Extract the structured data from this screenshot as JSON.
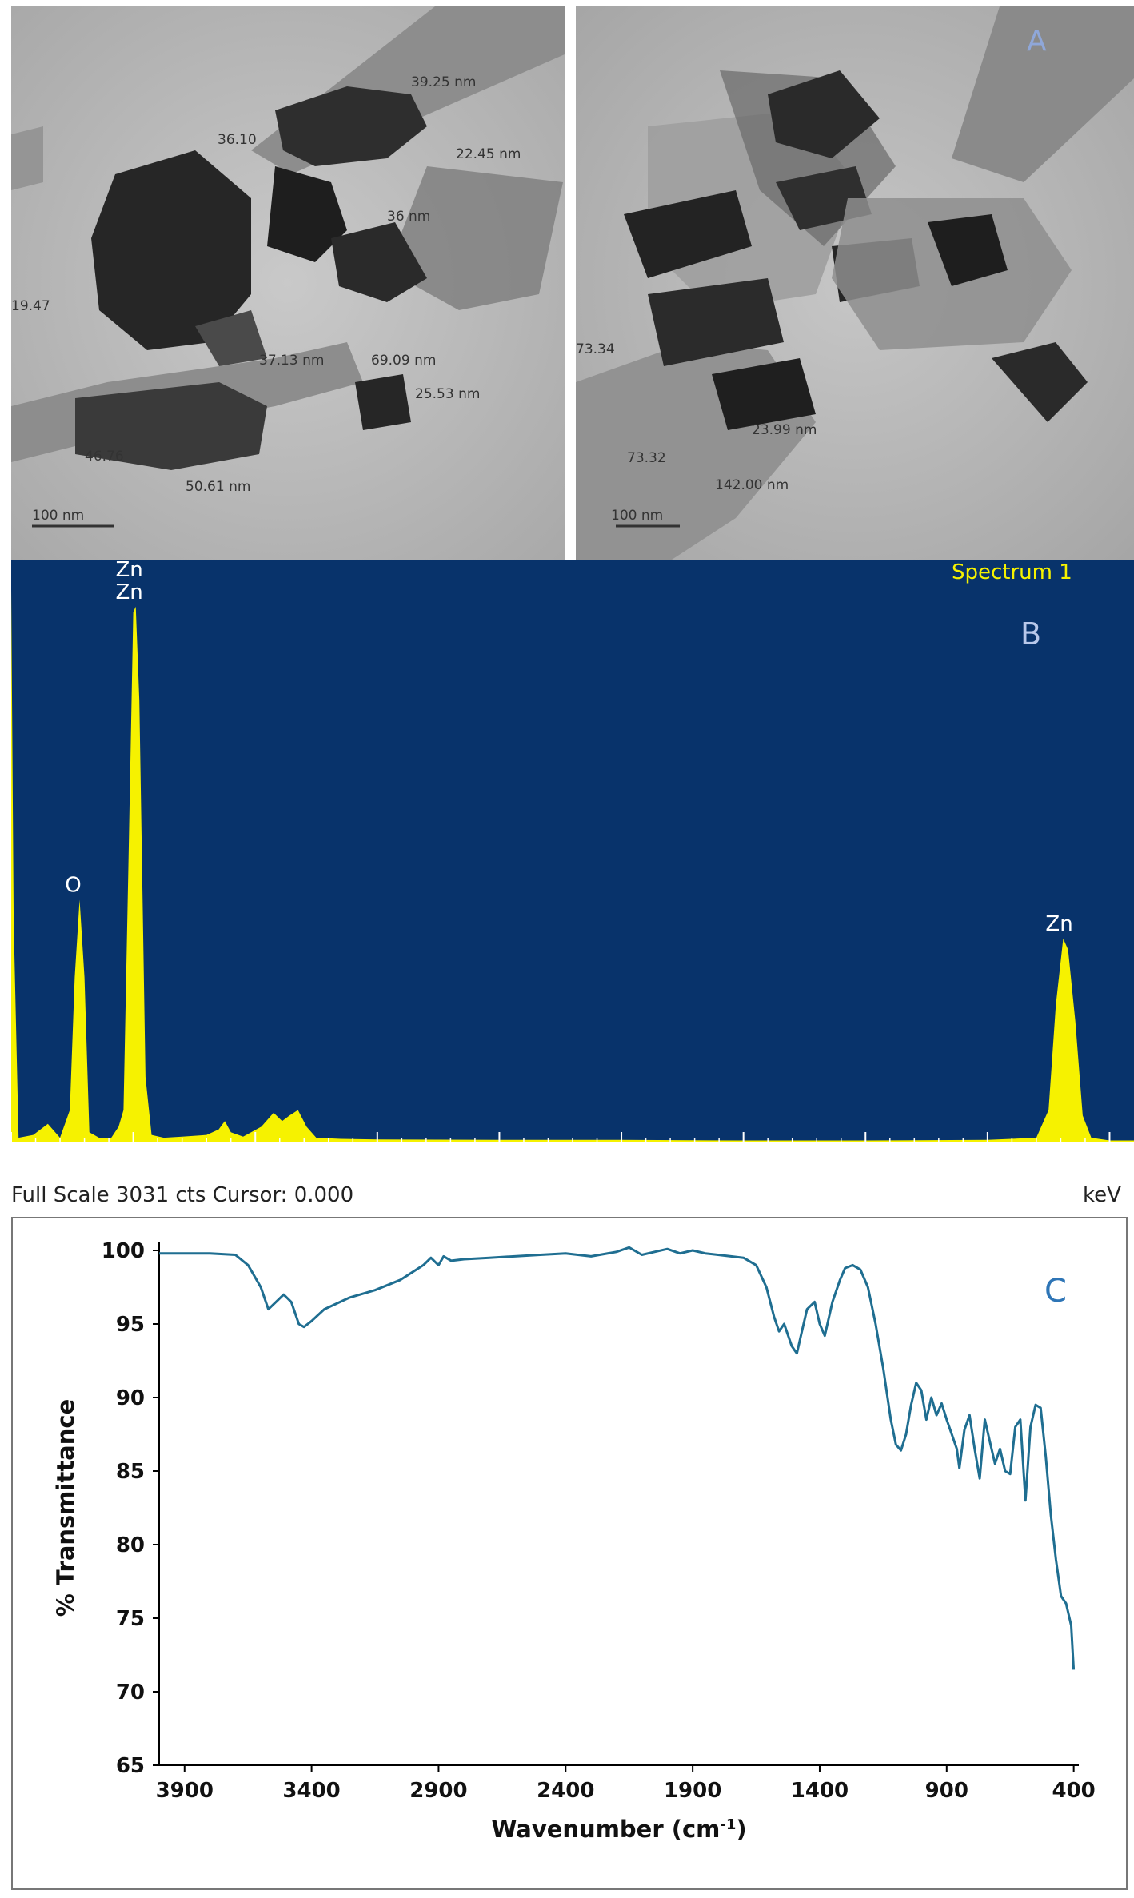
{
  "panel_a": {
    "label": "A",
    "left_image": {
      "scale_bar": "100 nm",
      "measurements": [
        "39.25 nm",
        "36.10",
        "22.45 nm",
        "36 nm",
        "19.47",
        "37.13 nm",
        "69.09 nm",
        "25.53 nm",
        "46.76",
        "50.61 nm"
      ]
    },
    "right_image": {
      "scale_bar": "100 nm",
      "measurements": [
        "73.34",
        "23.99 nm",
        "73.32",
        "142.00 nm"
      ]
    },
    "colors": {
      "background": "#b9b9b9",
      "fiber": "#8c8c8c",
      "particle": "#2a2a2a"
    }
  },
  "chart_data": [
    {
      "type": "line",
      "panel_label": "B",
      "spectrum_label": "Spectrum 1",
      "footer_left": "Full Scale 3031 cts Cursor: 0.000",
      "xlabel": "keV",
      "xlim": [
        0,
        9.2
      ],
      "x_ticks": [
        "0",
        "1",
        "2",
        "3",
        "4",
        "5",
        "6",
        "7",
        "8",
        "9"
      ],
      "peaks": [
        {
          "label": "O",
          "x": 0.56,
          "height_fraction": 0.44
        },
        {
          "label": "Zn",
          "x": 1.02,
          "height_fraction": 0.97
        },
        {
          "label": "Zn",
          "x": 1.02,
          "height_fraction": 0.97
        },
        {
          "label": "Zn",
          "x": 8.64,
          "height_fraction": 0.37
        }
      ],
      "series": [
        {
          "x": [
            0.0,
            0.02,
            0.06,
            0.18,
            0.3,
            0.4,
            0.48,
            0.52,
            0.56,
            0.6,
            0.64,
            0.72,
            0.82,
            0.88,
            0.92,
            0.96,
            1.0,
            1.02,
            1.05,
            1.1,
            1.15,
            1.25,
            1.4,
            1.6,
            1.7,
            1.75,
            1.8,
            1.9,
            2.05,
            2.15,
            2.22,
            2.28,
            2.35,
            2.42,
            2.5,
            2.7,
            3.0,
            4.0,
            5.0,
            6.0,
            7.0,
            8.0,
            8.4,
            8.5,
            8.56,
            8.62,
            8.66,
            8.72,
            8.78,
            8.85,
            9.0,
            9.2
          ],
          "y": [
            1.0,
            0.4,
            0.01,
            0.015,
            0.035,
            0.01,
            0.06,
            0.3,
            0.44,
            0.3,
            0.02,
            0.01,
            0.01,
            0.03,
            0.06,
            0.5,
            0.96,
            0.97,
            0.8,
            0.12,
            0.015,
            0.01,
            0.012,
            0.015,
            0.025,
            0.04,
            0.02,
            0.012,
            0.03,
            0.055,
            0.04,
            0.05,
            0.06,
            0.03,
            0.01,
            0.008,
            0.007,
            0.006,
            0.006,
            0.005,
            0.005,
            0.006,
            0.01,
            0.06,
            0.25,
            0.37,
            0.35,
            0.22,
            0.05,
            0.01,
            0.005,
            0.005
          ]
        }
      ],
      "colors": {
        "background": "#08336b",
        "spectrum": "#f6f200",
        "label": "#ffffff"
      }
    },
    {
      "type": "line",
      "panel_label": "C",
      "xlabel_main": "Wavenumber (cm",
      "xlabel_sup": "-1",
      "xlabel_end": ")",
      "ylabel": "% Transmittance",
      "xlim": [
        4000,
        380
      ],
      "ylim": [
        65,
        100
      ],
      "x_ticks": [
        3900,
        3400,
        2900,
        2400,
        1900,
        1400,
        900,
        400
      ],
      "y_ticks": [
        100,
        95,
        90,
        85,
        80,
        75,
        70,
        65
      ],
      "series": [
        {
          "x": [
            4000,
            3800,
            3700,
            3650,
            3600,
            3570,
            3540,
            3510,
            3480,
            3450,
            3430,
            3400,
            3350,
            3250,
            3150,
            3050,
            2960,
            2930,
            2900,
            2880,
            2850,
            2800,
            2700,
            2500,
            2400,
            2300,
            2200,
            2150,
            2100,
            2050,
            2000,
            1950,
            1900,
            1850,
            1800,
            1700,
            1650,
            1610,
            1580,
            1560,
            1540,
            1510,
            1490,
            1470,
            1450,
            1420,
            1400,
            1380,
            1350,
            1320,
            1300,
            1270,
            1240,
            1210,
            1180,
            1150,
            1120,
            1100,
            1080,
            1060,
            1040,
            1020,
            1000,
            980,
            960,
            940,
            920,
            900,
            880,
            860,
            850,
            830,
            810,
            790,
            770,
            750,
            730,
            710,
            690,
            670,
            650,
            630,
            610,
            590,
            570,
            550,
            530,
            510,
            490,
            470,
            450,
            430,
            410,
            400
          ],
          "y": [
            99.8,
            99.8,
            99.7,
            99.0,
            97.5,
            96.0,
            96.5,
            97.0,
            96.5,
            95.0,
            94.8,
            95.2,
            96.0,
            96.8,
            97.3,
            98.0,
            99.0,
            99.5,
            99.0,
            99.6,
            99.3,
            99.4,
            99.5,
            99.7,
            99.8,
            99.6,
            99.9,
            100.2,
            99.7,
            99.9,
            100.1,
            99.8,
            100.0,
            99.8,
            99.7,
            99.5,
            99.0,
            97.5,
            95.5,
            94.5,
            95.0,
            93.5,
            93.0,
            94.5,
            96.0,
            96.5,
            95.0,
            94.2,
            96.5,
            98.0,
            98.8,
            99.0,
            98.7,
            97.5,
            95.0,
            92.0,
            88.5,
            86.8,
            86.4,
            87.5,
            89.5,
            91.0,
            90.5,
            88.5,
            90.0,
            88.8,
            89.6,
            88.5,
            87.5,
            86.5,
            85.2,
            87.8,
            88.8,
            86.5,
            84.5,
            88.5,
            87.0,
            85.5,
            86.5,
            85.0,
            84.8,
            88.0,
            88.5,
            83.0,
            88.0,
            89.5,
            89.3,
            86.0,
            82.0,
            79.0,
            76.5,
            76.0,
            74.5,
            71.5
          ]
        }
      ],
      "colors": {
        "line": "#1f6e91",
        "panel_label": "#2e75b6"
      }
    }
  ]
}
